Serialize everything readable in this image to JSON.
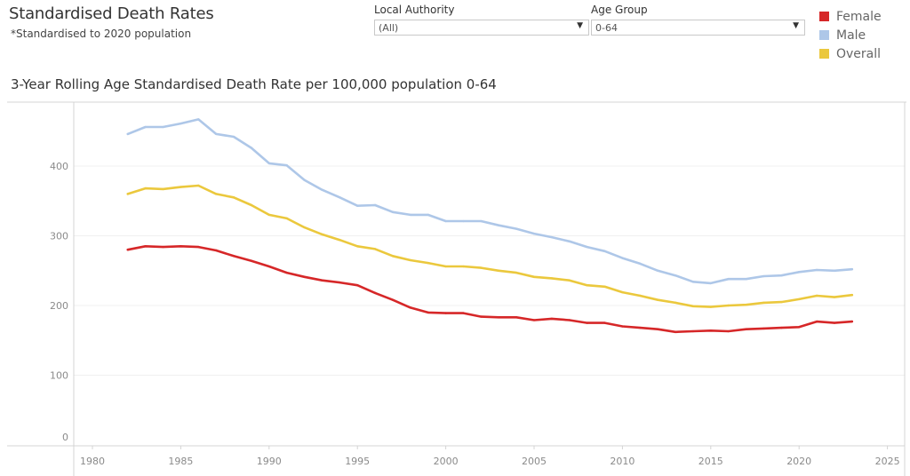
{
  "header": {
    "title": "Standardised Death Rates",
    "subtitle": "*Standardised to 2020 population"
  },
  "filters": {
    "local_authority": {
      "label": "Local Authority",
      "value": "(All)",
      "icon": "dropdown-arrow-icon"
    },
    "age_group": {
      "label": "Age Group",
      "value": "0-64",
      "icon": "dropdown-arrow-icon"
    }
  },
  "legend": [
    {
      "label": "Female",
      "color": "#D62728"
    },
    {
      "label": "Male",
      "color": "#AEC7E8"
    },
    {
      "label": "Overall",
      "color": "#EBC83D"
    }
  ],
  "chart_data": {
    "type": "line",
    "title": "3-Year Rolling Age Standardised Death Rate per 100,000 population 0-64",
    "xlabel": "",
    "ylabel": "",
    "xlim": [
      1977.5,
      2026
    ],
    "ylim": [
      0,
      480
    ],
    "x_ticks": [
      1980,
      1985,
      1990,
      1995,
      2000,
      2005,
      2010,
      2015,
      2020,
      2025
    ],
    "x_tick_labels": [
      "1980",
      "1985",
      "1990",
      "1995",
      "2000",
      "2005",
      "2010",
      "2015",
      "2020",
      "2025"
    ],
    "y_ticks": [
      0,
      100,
      200,
      300,
      400
    ],
    "y_tick_labels": [
      "0",
      "100",
      "200",
      "300",
      "400"
    ],
    "grid": "horizontal",
    "legend_position": "top-right",
    "x": [
      1982,
      1983,
      1984,
      1985,
      1986,
      1987,
      1988,
      1989,
      1990,
      1991,
      1992,
      1993,
      1994,
      1995,
      1996,
      1997,
      1998,
      1999,
      2000,
      2001,
      2002,
      2003,
      2004,
      2005,
      2006,
      2007,
      2008,
      2009,
      2010,
      2011,
      2012,
      2013,
      2014,
      2015,
      2016,
      2017,
      2018,
      2019,
      2020,
      2021,
      2022,
      2023
    ],
    "series": [
      {
        "name": "Male",
        "color": "#AEC7E8",
        "values": [
          446,
          456,
          456,
          461,
          467,
          446,
          442,
          426,
          404,
          401,
          380,
          366,
          355,
          343,
          344,
          334,
          330,
          330,
          321,
          321,
          321,
          315,
          310,
          303,
          298,
          292,
          284,
          278,
          268,
          260,
          250,
          243,
          234,
          232,
          238,
          238,
          242,
          243,
          248,
          251,
          250,
          252
        ]
      },
      {
        "name": "Overall",
        "color": "#EBC83D",
        "values": [
          360,
          368,
          367,
          370,
          372,
          360,
          355,
          344,
          330,
          325,
          312,
          302,
          294,
          285,
          281,
          271,
          265,
          261,
          256,
          256,
          254,
          250,
          247,
          241,
          239,
          236,
          229,
          227,
          219,
          214,
          208,
          204,
          199,
          198,
          200,
          201,
          204,
          205,
          209,
          214,
          212,
          215
        ]
      },
      {
        "name": "Female",
        "color": "#D62728",
        "values": [
          280,
          285,
          284,
          285,
          284,
          279,
          271,
          264,
          256,
          247,
          241,
          236,
          233,
          229,
          218,
          208,
          197,
          190,
          189,
          189,
          184,
          183,
          183,
          179,
          181,
          179,
          175,
          175,
          170,
          168,
          166,
          162,
          163,
          164,
          163,
          166,
          167,
          168,
          169,
          177,
          175,
          177
        ]
      }
    ]
  }
}
